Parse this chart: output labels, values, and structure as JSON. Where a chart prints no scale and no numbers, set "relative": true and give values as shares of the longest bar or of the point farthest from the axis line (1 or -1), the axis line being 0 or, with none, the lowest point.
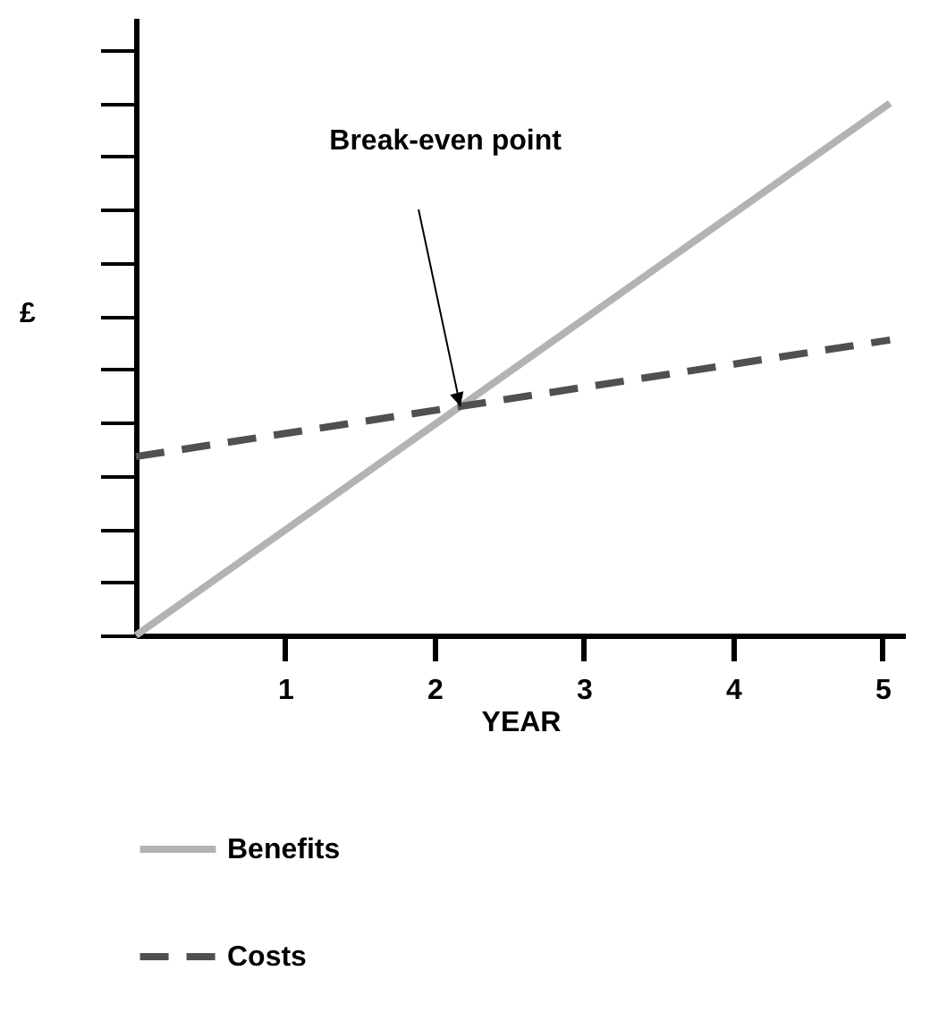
{
  "chart_data": {
    "type": "line",
    "relative": true,
    "xlabel": "YEAR",
    "ylabel": "£",
    "x": [
      0,
      5.05
    ],
    "xlim": [
      0,
      5.15
    ],
    "xticks": [
      1,
      2,
      3,
      4,
      5
    ],
    "grid": false,
    "legend": "bottom",
    "marker": "none",
    "series": [
      {
        "name": "Benefits",
        "color": "#b3b3b3",
        "line_style": "solid",
        "values": [
          0,
          1
        ]
      },
      {
        "name": "Costs",
        "color": "#505050",
        "line_style": "dashed",
        "values": [
          0.336,
          0.555
        ]
      }
    ],
    "annotations": [
      "Break-even point"
    ]
  }
}
